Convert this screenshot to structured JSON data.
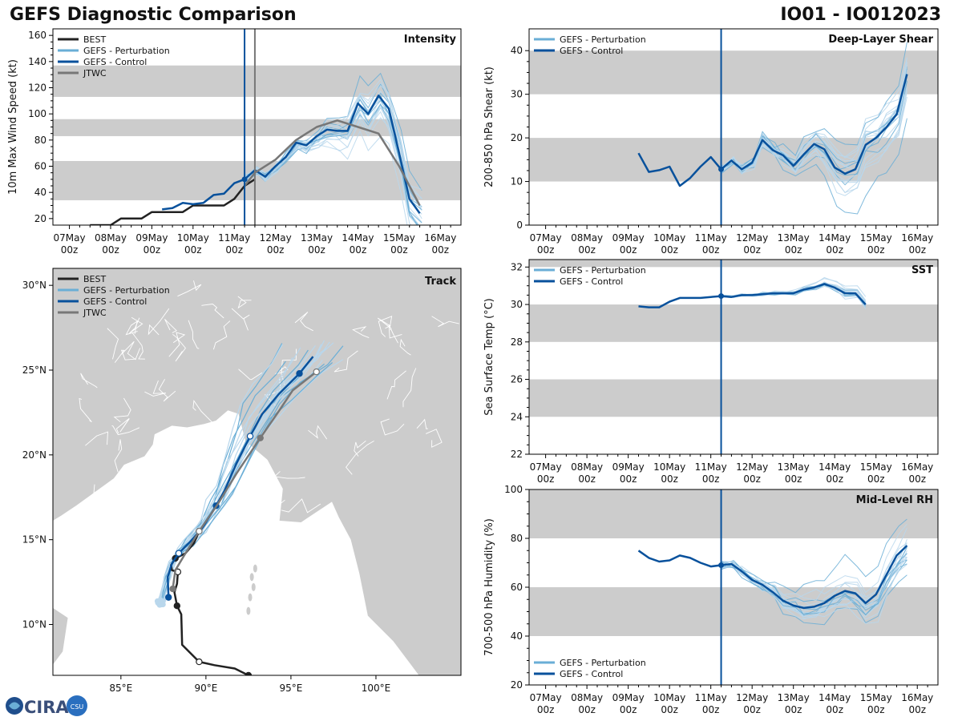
{
  "header": {
    "title_left": "GEFS Diagnostic Comparison",
    "title_right": "IO01 - IO012023"
  },
  "logo": {
    "text": "CIRA",
    "label": "CSU"
  },
  "colors": {
    "best": "#222222",
    "perturbation": "#6aaed6",
    "perturbation_light": "#b9d7ec",
    "control": "#08519c",
    "jtwc": "#777777",
    "band": "#cccccc",
    "land": "#cccccc"
  },
  "time_axis": {
    "ticks": [
      "07May",
      "08May",
      "09May",
      "10May",
      "11May",
      "12May",
      "13May",
      "14May",
      "15May",
      "16May"
    ],
    "sub": "00z",
    "range": [
      6.6,
      16.5
    ]
  },
  "chart_data": [
    {
      "id": "intensity",
      "type": "line",
      "title": "Intensity",
      "ylabel": "10m Max Wind Speed (kt)",
      "ylim": [
        15,
        165
      ],
      "yticks": [
        20,
        40,
        60,
        80,
        100,
        120,
        140,
        160
      ],
      "bands": [
        [
          34,
          64
        ],
        [
          83,
          96
        ],
        [
          113,
          137
        ]
      ],
      "vlines": [
        {
          "x": 11.25,
          "series": "control"
        },
        {
          "x": 11.5,
          "series": "jtwc"
        }
      ],
      "legend": [
        "BEST",
        "GEFS - Perturbation",
        "GEFS - Control",
        "JTWC"
      ],
      "series": [
        {
          "name": "BEST",
          "x": [
            7.5,
            7.75,
            8.0,
            8.25,
            8.5,
            8.75,
            9.0,
            9.25,
            9.5,
            9.75,
            10.0,
            10.25,
            10.5,
            10.75,
            11.0,
            11.25,
            11.5
          ],
          "y": [
            15,
            15,
            15,
            20,
            20,
            20,
            25,
            25,
            25,
            25,
            30,
            30,
            30,
            30,
            35,
            45,
            50
          ]
        },
        {
          "name": "GEFS - Control",
          "x": [
            9.25,
            9.5,
            9.75,
            10.0,
            10.25,
            10.5,
            10.75,
            11.0,
            11.25,
            11.5,
            11.75,
            12.0,
            12.25,
            12.5,
            12.75,
            13.0,
            13.25,
            13.5,
            13.75,
            14.0,
            14.25,
            14.5,
            14.75,
            15.0,
            15.25,
            15.5
          ],
          "y": [
            27,
            28,
            32,
            31,
            32,
            38,
            39,
            47,
            50,
            57,
            52,
            60,
            67,
            78,
            76,
            83,
            88,
            87,
            87,
            108,
            100,
            114,
            104,
            70,
            35,
            24
          ]
        },
        {
          "name": "JTWC",
          "x": [
            11.25,
            11.5,
            12.0,
            12.5,
            13.0,
            13.5,
            14.0,
            14.5,
            15.0,
            15.5
          ],
          "y": [
            45,
            55,
            65,
            80,
            90,
            95,
            90,
            85,
            60,
            30
          ]
        }
      ],
      "perturbation_count": 20
    },
    {
      "id": "shear",
      "type": "line",
      "title": "Deep-Layer Shear",
      "ylabel": "200-850 hPa Shear (kt)",
      "ylim": [
        0,
        45
      ],
      "yticks": [
        0,
        10,
        20,
        30,
        40
      ],
      "bands": [
        [
          10,
          20
        ],
        [
          30,
          40
        ]
      ],
      "vlines": [
        {
          "x": 11.25,
          "series": "control"
        }
      ],
      "legend": [
        "GEFS - Perturbation",
        "GEFS - Control"
      ],
      "series": [
        {
          "name": "GEFS - Control",
          "x": [
            9.25,
            9.5,
            9.75,
            10.0,
            10.25,
            10.5,
            10.75,
            11.0,
            11.25,
            11.5,
            11.75,
            12.0,
            12.25,
            12.5,
            12.75,
            13.0,
            13.25,
            13.5,
            13.75,
            14.0,
            14.25,
            14.5,
            14.75,
            15.0,
            15.25,
            15.5,
            15.75
          ],
          "y": [
            16.5,
            12.2,
            12.6,
            13.4,
            9.0,
            10.8,
            13.4,
            15.6,
            12.8,
            14.8,
            12.8,
            14.3,
            19.5,
            17.2,
            16.0,
            13.6,
            16.2,
            18.6,
            17.4,
            13.2,
            11.8,
            12.8,
            18.4,
            20.0,
            22.4,
            25.4,
            34.6
          ]
        }
      ],
      "perturbation_count": 20
    },
    {
      "id": "sst",
      "type": "line",
      "title": "SST",
      "ylabel": "Sea Surface Temp (°C)",
      "ylim": [
        22,
        32.4
      ],
      "yticks": [
        22,
        24,
        26,
        28,
        30,
        32
      ],
      "bands": [
        [
          24,
          26
        ],
        [
          28,
          30
        ],
        [
          32,
          32.4
        ]
      ],
      "vlines": [
        {
          "x": 11.25,
          "series": "control"
        }
      ],
      "legend": [
        "GEFS - Perturbation",
        "GEFS - Control"
      ],
      "series": [
        {
          "name": "GEFS - Control",
          "x": [
            9.25,
            9.5,
            9.75,
            10.0,
            10.25,
            10.5,
            10.75,
            11.0,
            11.25,
            11.5,
            11.75,
            12.0,
            12.25,
            12.5,
            12.75,
            13.0,
            13.25,
            13.5,
            13.75,
            14.0,
            14.25,
            14.5,
            14.75
          ],
          "y": [
            29.9,
            29.85,
            29.85,
            30.15,
            30.35,
            30.35,
            30.35,
            30.4,
            30.45,
            30.4,
            30.5,
            30.5,
            30.55,
            30.6,
            30.6,
            30.6,
            30.8,
            30.9,
            31.1,
            30.9,
            30.6,
            30.6,
            30.0
          ]
        }
      ],
      "perturbation_count": 14
    },
    {
      "id": "rh",
      "type": "line",
      "title": "Mid-Level RH",
      "ylabel": "700-500 hPa Humidity (%)",
      "ylim": [
        20,
        100
      ],
      "yticks": [
        20,
        40,
        60,
        80,
        100
      ],
      "bands": [
        [
          40,
          60
        ],
        [
          80,
          100
        ]
      ],
      "vlines": [
        {
          "x": 11.25,
          "series": "control"
        }
      ],
      "legend": [
        "GEFS - Perturbation",
        "GEFS - Control"
      ],
      "series": [
        {
          "name": "GEFS - Control",
          "x": [
            9.25,
            9.5,
            9.75,
            10.0,
            10.25,
            10.5,
            10.75,
            11.0,
            11.25,
            11.5,
            11.75,
            12.0,
            12.25,
            12.5,
            12.75,
            13.0,
            13.25,
            13.5,
            13.75,
            14.0,
            14.25,
            14.5,
            14.75,
            15.0,
            15.25,
            15.5,
            15.75
          ],
          "y": [
            75,
            72,
            70.5,
            71,
            73,
            72,
            70,
            68.5,
            69,
            69.5,
            66.5,
            63,
            61,
            58,
            54.5,
            52.5,
            51.5,
            52,
            53.5,
            56.5,
            58.5,
            57.5,
            53.5,
            57,
            65,
            73,
            77
          ]
        }
      ],
      "perturbation_count": 20
    },
    {
      "id": "track",
      "type": "map-track",
      "title": "Track",
      "xticks": [
        {
          "v": 85,
          "label": "85°E"
        },
        {
          "v": 90,
          "label": "90°E"
        },
        {
          "v": 95,
          "label": "95°E"
        },
        {
          "v": 100,
          "label": "100°E"
        }
      ],
      "yticks": [
        {
          "v": 10,
          "label": "10°N"
        },
        {
          "v": 15,
          "label": "15°N"
        },
        {
          "v": 20,
          "label": "20°N"
        },
        {
          "v": 25,
          "label": "25°N"
        },
        {
          "v": 30,
          "label": "30°N"
        }
      ],
      "lon_range": [
        81,
        105
      ],
      "lat_range": [
        7,
        31
      ],
      "legend": [
        "BEST",
        "GEFS - Perturbation",
        "GEFS - Control",
        "JTWC"
      ],
      "series": [
        {
          "name": "BEST",
          "lon": [
            92.5,
            91.7,
            90.5,
            89.6,
            88.6,
            88.55,
            88.3,
            88.15,
            88.3,
            88.35,
            88.0,
            87.95,
            88.2,
            88.8,
            89.3,
            89.6
          ],
          "lat": [
            7.0,
            7.4,
            7.6,
            7.8,
            8.8,
            10.6,
            11.1,
            11.9,
            12.4,
            13.1,
            13.2,
            13.5,
            13.9,
            14.2,
            14.8,
            15.5
          ]
        },
        {
          "name": "GEFS - Control",
          "lon": [
            87.8,
            87.75,
            88.0,
            88.4,
            89.0,
            89.8,
            90.6,
            91.1,
            91.8,
            92.6,
            93.3,
            94.3,
            95.5,
            96.3
          ],
          "lat": [
            11.6,
            12.8,
            13.6,
            14.2,
            14.8,
            15.7,
            17.0,
            17.9,
            19.5,
            21.1,
            22.4,
            23.6,
            24.8,
            25.8
          ]
        },
        {
          "name": "JTWC",
          "lon": [
            88.05,
            88.2,
            88.8,
            89.6,
            90.7,
            91.8,
            93.2,
            94.3,
            95.1,
            96.5
          ],
          "lat": [
            12.1,
            13.2,
            14.2,
            15.5,
            17.1,
            18.9,
            21.0,
            22.6,
            23.8,
            24.9
          ]
        }
      ],
      "perturbation_count": 20
    }
  ]
}
